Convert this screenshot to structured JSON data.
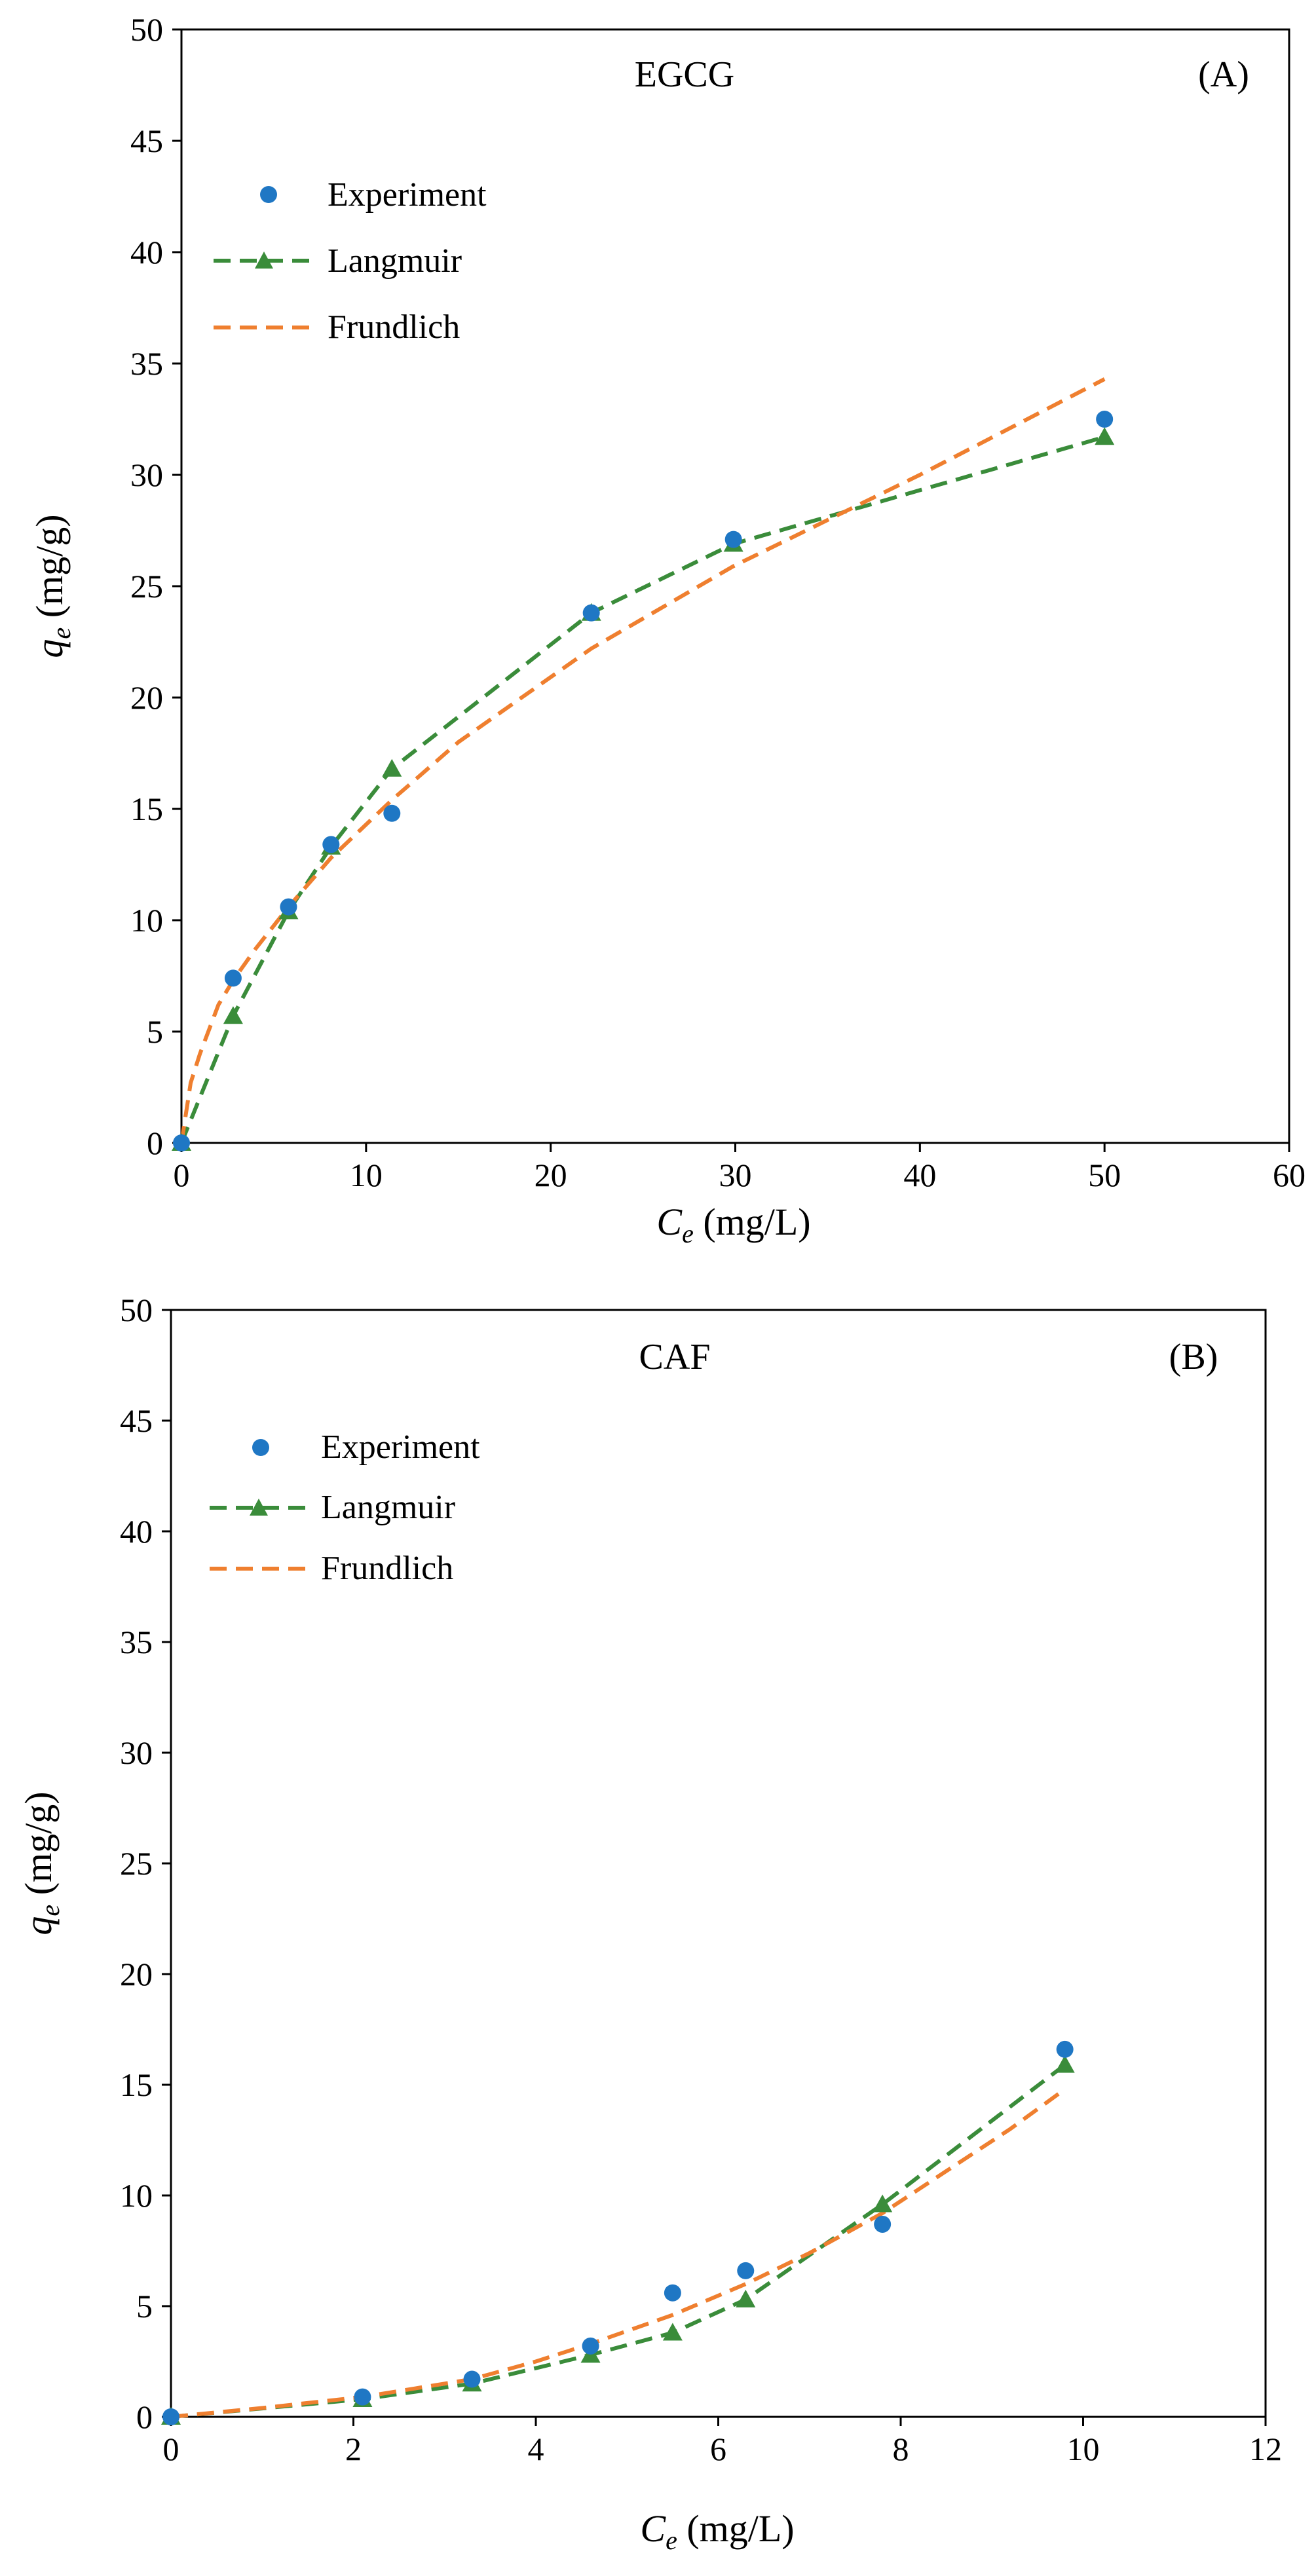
{
  "chart_data": [
    {
      "type": "scatter",
      "title": "EGCG",
      "panel_label": "(A)",
      "xlabel": {
        "main": "C",
        "sub": "e",
        "unit": " (mg/L)"
      },
      "ylabel": {
        "main": "q",
        "sub": "e",
        "unit": " (mg/g)"
      },
      "xlim": [
        0,
        60
      ],
      "ylim": [
        0,
        50
      ],
      "xticks": [
        0,
        10,
        20,
        30,
        40,
        50,
        60
      ],
      "yticks": [
        0,
        5,
        10,
        15,
        20,
        25,
        30,
        35,
        40,
        45,
        50
      ],
      "legend_position": "top-left",
      "series": [
        {
          "name": "Experiment",
          "kind": "markers",
          "marker": "circle",
          "color": "#1f77c4",
          "x": [
            0,
            2.8,
            5.8,
            8.1,
            11.4,
            22.2,
            29.9,
            50
          ],
          "y": [
            0,
            7.4,
            10.6,
            13.4,
            14.8,
            23.8,
            27.1,
            32.5
          ]
        },
        {
          "name": "Langmuir",
          "kind": "dashed-line-markers",
          "marker": "triangle",
          "color": "#3a8c3a",
          "x": [
            0,
            2.8,
            5.8,
            8.1,
            11.4,
            22.2,
            29.9,
            50
          ],
          "y": [
            0,
            5.7,
            10.4,
            13.3,
            16.8,
            23.8,
            26.9,
            31.7
          ]
        },
        {
          "name": "Frundlich",
          "kind": "dashed-line",
          "color": "#ef7f2f",
          "x": [
            0,
            0.5,
            1,
            2,
            2.8,
            4,
            5.8,
            8.1,
            11.4,
            15,
            22.2,
            29.9,
            40,
            50
          ],
          "y": [
            0,
            2.7,
            4.0,
            6.2,
            7.3,
            8.7,
            10.6,
            12.8,
            15.4,
            18.0,
            22.2,
            25.9,
            30.0,
            34.3
          ]
        }
      ]
    },
    {
      "type": "scatter",
      "title": "CAF",
      "panel_label": "(B)",
      "xlabel": {
        "main": "C",
        "sub": "e",
        "unit": " (mg/L)"
      },
      "ylabel": {
        "main": "q",
        "sub": "e",
        "unit": " (mg/g)"
      },
      "xlim": [
        0,
        12
      ],
      "ylim": [
        0,
        50
      ],
      "xticks": [
        0,
        2,
        4,
        6,
        8,
        10,
        12
      ],
      "yticks": [
        0,
        5,
        10,
        15,
        20,
        25,
        30,
        35,
        40,
        45,
        50
      ],
      "legend_position": "top-left",
      "series": [
        {
          "name": "Experiment",
          "kind": "markers",
          "marker": "circle",
          "color": "#1f77c4",
          "x": [
            0,
            2.1,
            3.3,
            4.6,
            5.5,
            6.3,
            7.8,
            9.8
          ],
          "y": [
            0,
            0.9,
            1.7,
            3.2,
            5.6,
            6.6,
            8.7,
            16.6
          ]
        },
        {
          "name": "Langmuir",
          "kind": "dashed-line-markers",
          "marker": "triangle",
          "color": "#3a8c3a",
          "x": [
            0,
            2.1,
            3.3,
            4.6,
            5.5,
            6.3,
            7.8,
            9.8
          ],
          "y": [
            0,
            0.8,
            1.5,
            2.8,
            3.8,
            5.3,
            9.6,
            15.9
          ]
        },
        {
          "name": "Frundlich",
          "kind": "dashed-line",
          "color": "#ef7f2f",
          "x": [
            0,
            1,
            2.1,
            3,
            3.3,
            4,
            4.6,
            5.5,
            6.3,
            7,
            7.8,
            8.5,
            9.2,
            9.8
          ],
          "y": [
            0,
            0.4,
            0.9,
            1.5,
            1.7,
            2.5,
            3.3,
            4.6,
            6.0,
            7.4,
            9.2,
            11.1,
            13.0,
            14.8
          ]
        }
      ]
    }
  ]
}
